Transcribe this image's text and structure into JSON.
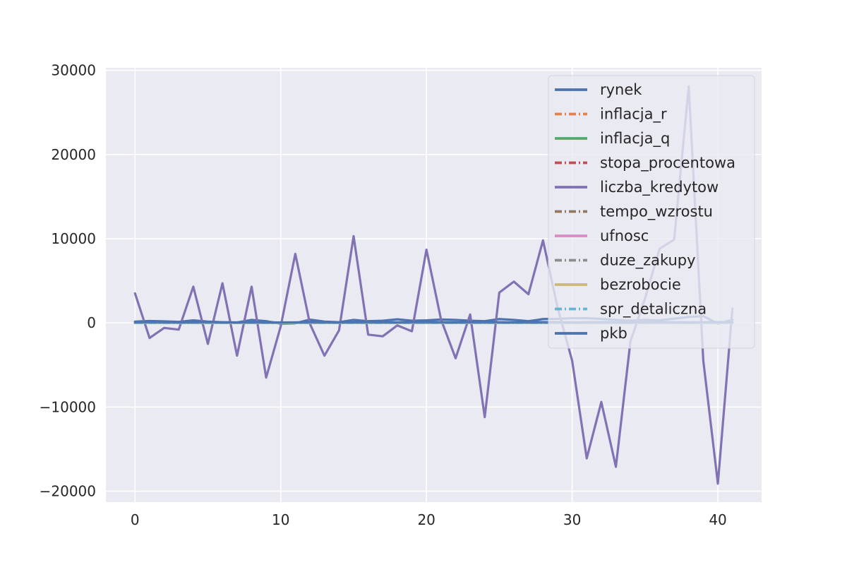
{
  "chart_data": {
    "type": "line",
    "title": "",
    "xlabel": "",
    "ylabel": "",
    "xlim": [
      -2,
      43
    ],
    "ylim": [
      -21300,
      30300
    ],
    "x_ticks": [
      0,
      10,
      20,
      30,
      40
    ],
    "x_tick_labels": [
      "0",
      "10",
      "20",
      "30",
      "40"
    ],
    "y_ticks": [
      -20000,
      -10000,
      0,
      10000,
      20000,
      30000
    ],
    "y_tick_labels": [
      "−20000",
      "−10000",
      "0",
      "10000",
      "20000",
      "30000"
    ],
    "grid": true,
    "legend_position": "upper right",
    "x": [
      0,
      1,
      2,
      3,
      4,
      5,
      6,
      7,
      8,
      9,
      10,
      11,
      12,
      13,
      14,
      15,
      16,
      17,
      18,
      19,
      20,
      21,
      22,
      23,
      24,
      25,
      26,
      27,
      28,
      29,
      30,
      31,
      32,
      33,
      34,
      35,
      36,
      37,
      38,
      39,
      40,
      41
    ],
    "series": [
      {
        "name": "rynek",
        "color": "#4c72b0",
        "dash": "solid",
        "values": [
          150,
          220,
          180,
          120,
          300,
          150,
          80,
          50,
          350,
          200,
          -100,
          -50,
          380,
          150,
          80,
          350,
          200,
          250,
          420,
          250,
          300,
          400,
          350,
          250,
          200,
          450,
          350,
          200,
          450,
          480,
          550,
          550,
          480,
          350,
          250,
          350,
          300,
          500,
          700,
          800,
          -100,
          350
        ]
      },
      {
        "name": "inflacja_r",
        "color": "#dd8452",
        "dash": "dashdot",
        "values": [
          0,
          0,
          0,
          0,
          0,
          0,
          0,
          0,
          0,
          0,
          0,
          0,
          0,
          0,
          0,
          0,
          0,
          0,
          0,
          0,
          0,
          0,
          0,
          0,
          0,
          0,
          0,
          0,
          0,
          0,
          0,
          0,
          0,
          0,
          0,
          0,
          0,
          0,
          0,
          0,
          0,
          0
        ]
      },
      {
        "name": "inflacja_q",
        "color": "#55a868",
        "dash": "solid",
        "values": [
          0,
          0,
          0,
          0,
          0,
          0,
          0,
          0,
          0,
          0,
          0,
          0,
          0,
          0,
          0,
          0,
          0,
          0,
          0,
          0,
          0,
          0,
          0,
          0,
          0,
          0,
          0,
          0,
          0,
          0,
          0,
          0,
          0,
          0,
          0,
          0,
          0,
          0,
          0,
          0,
          0,
          0
        ]
      },
      {
        "name": "stopa_procentowa",
        "color": "#c44e52",
        "dash": "dashdot",
        "values": [
          0,
          0,
          0,
          0,
          0,
          0,
          0,
          0,
          0,
          0,
          0,
          0,
          0,
          0,
          0,
          0,
          0,
          0,
          0,
          0,
          0,
          0,
          0,
          0,
          0,
          0,
          0,
          0,
          0,
          0,
          0,
          0,
          0,
          0,
          0,
          0,
          0,
          0,
          0,
          0,
          0,
          0
        ]
      },
      {
        "name": "liczba_kredytow",
        "color": "#8172b3",
        "dash": "solid",
        "values": [
          3500,
          -1800,
          -600,
          -800,
          4300,
          -2500,
          4700,
          -3900,
          4300,
          -6500,
          -400,
          8200,
          -100,
          -3900,
          -900,
          10300,
          -1400,
          -1600,
          -300,
          -1000,
          8700,
          400,
          -4200,
          1000,
          -11200,
          3600,
          4900,
          3400,
          9800,
          1800,
          -4500,
          -16100,
          -9400,
          -17100,
          -2200,
          2900,
          8800,
          9900,
          28100,
          -4500,
          -19100,
          1700
        ]
      },
      {
        "name": "tempo_wzrostu",
        "color": "#937860",
        "dash": "dashdot",
        "values": [
          0,
          0,
          0,
          0,
          0,
          0,
          0,
          0,
          0,
          0,
          0,
          0,
          0,
          0,
          0,
          0,
          0,
          0,
          0,
          0,
          0,
          0,
          0,
          0,
          0,
          0,
          0,
          0,
          0,
          0,
          0,
          0,
          0,
          0,
          0,
          0,
          0,
          0,
          0,
          0,
          0,
          0
        ]
      },
      {
        "name": "ufnosc",
        "color": "#da8bc3",
        "dash": "solid",
        "values": [
          0,
          0,
          0,
          0,
          0,
          0,
          0,
          0,
          0,
          0,
          0,
          0,
          0,
          0,
          0,
          0,
          0,
          0,
          0,
          0,
          0,
          0,
          0,
          0,
          0,
          0,
          0,
          0,
          0,
          0,
          0,
          0,
          0,
          0,
          0,
          0,
          0,
          0,
          0,
          0,
          0,
          0
        ]
      },
      {
        "name": "duze_zakupy",
        "color": "#8c8c8c",
        "dash": "dashdot",
        "values": [
          0,
          0,
          0,
          0,
          0,
          0,
          0,
          0,
          0,
          0,
          0,
          0,
          0,
          0,
          0,
          0,
          0,
          0,
          0,
          0,
          0,
          0,
          0,
          0,
          0,
          0,
          0,
          0,
          0,
          0,
          0,
          0,
          0,
          0,
          0,
          0,
          0,
          0,
          0,
          0,
          0,
          0
        ]
      },
      {
        "name": "bezrobocie",
        "color": "#ccb974",
        "dash": "solid",
        "values": [
          0,
          0,
          0,
          0,
          0,
          0,
          0,
          0,
          0,
          0,
          0,
          0,
          0,
          0,
          0,
          0,
          0,
          0,
          0,
          0,
          0,
          0,
          0,
          0,
          0,
          0,
          0,
          0,
          0,
          0,
          0,
          0,
          0,
          0,
          0,
          0,
          0,
          0,
          0,
          0,
          0,
          0
        ]
      },
      {
        "name": "spr_detaliczna",
        "color": "#64b5cd",
        "dash": "dashdot",
        "values": [
          0,
          0,
          0,
          0,
          0,
          0,
          0,
          0,
          0,
          0,
          0,
          0,
          0,
          0,
          0,
          0,
          0,
          0,
          0,
          0,
          0,
          0,
          0,
          0,
          0,
          0,
          0,
          0,
          0,
          0,
          0,
          0,
          0,
          0,
          0,
          0,
          0,
          0,
          0,
          0,
          0,
          0
        ]
      },
      {
        "name": "pkb",
        "color": "#4c72b0",
        "dash": "solid",
        "values": [
          80,
          100,
          90,
          70,
          80,
          100,
          70,
          60,
          80,
          70,
          50,
          60,
          90,
          80,
          70,
          80,
          90,
          80,
          70,
          80,
          90,
          80,
          70,
          80,
          90,
          80,
          70,
          80,
          90,
          80,
          70,
          80,
          90,
          80,
          70,
          80,
          90,
          80,
          70,
          80,
          90,
          80
        ]
      }
    ]
  }
}
